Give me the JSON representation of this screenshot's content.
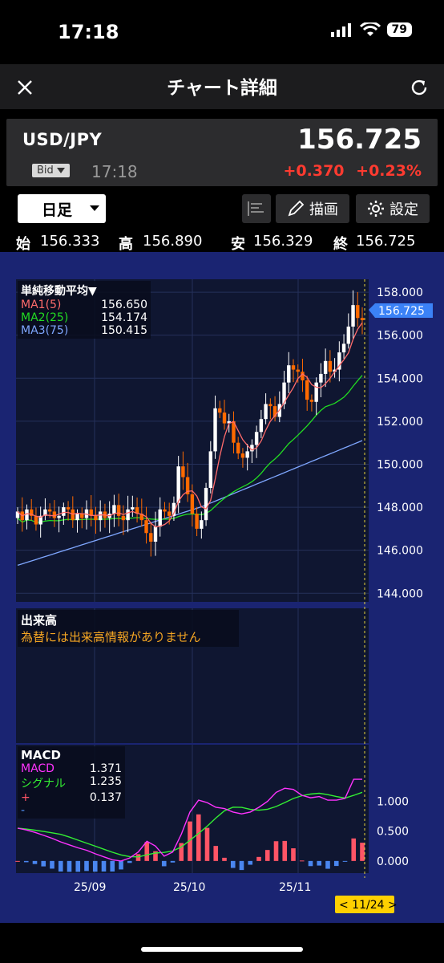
{
  "status": {
    "time": "17:18",
    "battery": "79"
  },
  "header": {
    "title": "チャート詳細",
    "close_icon": "close-icon",
    "refresh_icon": "refresh-icon"
  },
  "quote": {
    "pair": "USD/JPY",
    "price": "156.725",
    "side": "Bid",
    "time": "17:18",
    "change": "+0.370",
    "change_pct": "+0.23%",
    "change_color": "#ff3b30"
  },
  "toolbar": {
    "period": "日足",
    "draw_label": "描画",
    "settings_label": "設定"
  },
  "ohlc": {
    "open_label": "始",
    "open": "156.333",
    "high_label": "高",
    "high": "156.890",
    "low_label": "安",
    "low": "156.329",
    "close_label": "終",
    "close": "156.725"
  },
  "price_panel": {
    "legend_title": "単純移動平均▼",
    "ma": [
      {
        "name": "MA1(5)",
        "value": "156.650",
        "color": "#ff6b6b"
      },
      {
        "name": "MA2(25)",
        "value": "154.174",
        "color": "#22dd22"
      },
      {
        "name": "MA3(75)",
        "value": "150.415",
        "color": "#7fa7ff"
      }
    ],
    "ticks": [
      "158.000",
      "156.000",
      "154.000",
      "152.000",
      "150.000",
      "148.000",
      "146.000",
      "144.000"
    ],
    "current_price_tag": "156.725"
  },
  "volume_panel": {
    "title": "出来高",
    "message": "為替には出来高情報がありません"
  },
  "macd_panel": {
    "title": "MACD",
    "rows": [
      {
        "name": "MACD",
        "value": "1.371",
        "color": "#ff33ff"
      },
      {
        "name": "シグナル",
        "value": "1.235",
        "color": "#33ee33"
      },
      {
        "name": "+",
        "value": "0.137",
        "color": "#ff5566"
      },
      {
        "name": "-",
        "value": "",
        "color": "#5599ff"
      }
    ],
    "ticks": [
      "1.000",
      "0.500",
      "0.000"
    ]
  },
  "x_axis": {
    "labels": [
      "25/09",
      "25/10",
      "25/11"
    ],
    "cursor_label": "< 11/24 >"
  },
  "chart_data": {
    "type": "candlestick",
    "y_range": [
      143.6,
      158.6
    ],
    "close_series_approx": [
      147.8,
      147.4,
      147.9,
      147.6,
      147.2,
      147.6,
      147.9,
      147.8,
      147.5,
      147.6,
      148.0,
      147.9,
      147.4,
      147.7,
      147.5,
      147.9,
      147.6,
      147.4,
      147.8,
      147.5,
      147.7,
      148.1,
      147.6,
      147.4,
      147.9,
      148.0,
      147.7,
      147.4,
      146.8,
      146.4,
      147.1,
      147.9,
      147.8,
      147.6,
      148.2,
      149.9,
      149.4,
      148.6,
      147.7,
      147.0,
      147.4,
      148.9,
      150.6,
      152.6,
      152.4,
      151.9,
      152.0,
      151.0,
      150.5,
      150.3,
      150.6,
      150.9,
      151.5,
      152.1,
      152.8,
      152.7,
      152.2,
      152.8,
      153.8,
      154.6,
      154.4,
      154.3,
      153.9,
      153.0,
      152.9,
      153.8,
      154.2,
      154.8,
      154.3,
      154.4,
      155.2,
      155.6,
      156.4,
      157.4,
      156.8,
      156.7
    ],
    "macd_approx": [
      0.55,
      0.52,
      0.48,
      0.43,
      0.38,
      0.32,
      0.27,
      0.22,
      0.18,
      0.12,
      0.07,
      0.02,
      0.0,
      0.05,
      0.15,
      0.33,
      0.25,
      0.08,
      0.15,
      0.45,
      0.82,
      1.02,
      0.98,
      0.9,
      0.88,
      0.82,
      0.79,
      0.82,
      0.9,
      1.0,
      1.15,
      1.22,
      1.2,
      1.1,
      1.06,
      1.08,
      1.02,
      1.02,
      1.05,
      1.37,
      1.37
    ]
  }
}
